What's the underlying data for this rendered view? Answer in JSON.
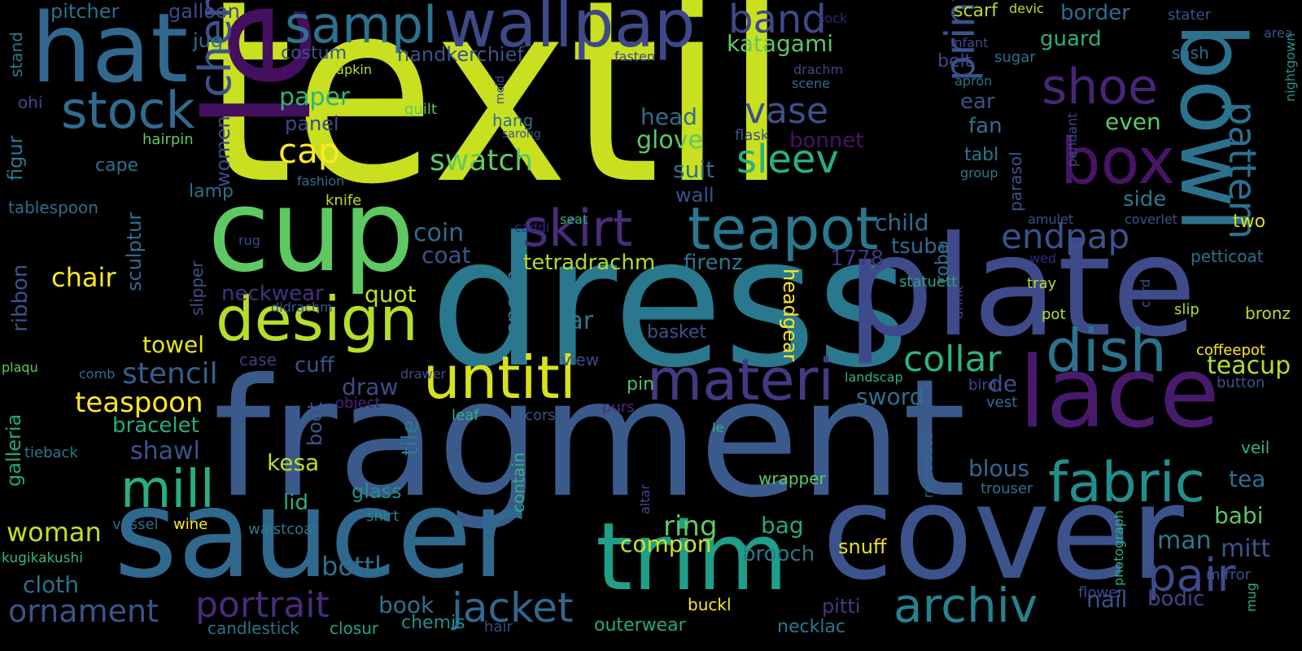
{
  "words": [
    {
      "text": "textil",
      "color": "#c8e020"
    },
    {
      "text": "dress",
      "color": "#2a788e"
    },
    {
      "text": "fragment",
      "color": "#3b5a8c"
    },
    {
      "text": "plate",
      "color": "#3f4a8a"
    },
    {
      "text": "length",
      "color": "#440f5e"
    },
    {
      "text": "cup",
      "color": "#5ec962"
    },
    {
      "text": "cover",
      "color": "#3b528b"
    },
    {
      "text": "saucer",
      "color": "#31688e"
    },
    {
      "text": "hat",
      "color": "#31688e"
    },
    {
      "text": "bowl",
      "color": "#2c728e"
    },
    {
      "text": "lace",
      "color": "#481a6c"
    },
    {
      "text": "wallpap",
      "color": "#3e4989"
    },
    {
      "text": "trim",
      "color": "#1f9e89"
    },
    {
      "text": "design",
      "color": "#b5de2b"
    },
    {
      "text": "sampl",
      "color": "#2c728e"
    },
    {
      "text": "stock",
      "color": "#2f6c8e"
    },
    {
      "text": "dish",
      "color": "#2c728e"
    },
    {
      "text": "box",
      "color": "#481467"
    },
    {
      "text": "shoe",
      "color": "#482576"
    },
    {
      "text": "teapot",
      "color": "#2a788e"
    },
    {
      "text": "materi",
      "color": "#443983"
    },
    {
      "text": "untitl",
      "color": "#d8e219"
    },
    {
      "text": "skirt",
      "color": "#472d7b"
    },
    {
      "text": "fabric",
      "color": "#21908d"
    },
    {
      "text": "archiv",
      "color": "#26828e"
    },
    {
      "text": "pair",
      "color": "#3e4a89"
    },
    {
      "text": "mill",
      "color": "#29af7f"
    },
    {
      "text": "cheney",
      "color": "#3b528b"
    },
    {
      "text": "jacket",
      "color": "#31688e"
    },
    {
      "text": "band",
      "color": "#3e4989"
    },
    {
      "text": "pattern",
      "color": "#2d708e"
    },
    {
      "text": "print",
      "color": "#3a538b"
    },
    {
      "text": "collar",
      "color": "#2eb37c"
    },
    {
      "text": "portrait",
      "color": "#472c7a"
    },
    {
      "text": "ornament",
      "color": "#3a548c"
    },
    {
      "text": "endpap",
      "color": "#3b528b"
    },
    {
      "text": "sleev",
      "color": "#2ab07f"
    },
    {
      "text": "vase",
      "color": "#3c4f8a"
    },
    {
      "text": "cap",
      "color": "#fde725"
    },
    {
      "text": "stencil",
      "color": "#355f8d"
    },
    {
      "text": "teaspoon",
      "color": "#fde725"
    },
    {
      "text": "swatch",
      "color": "#5ec962"
    },
    {
      "text": "tetradrachm",
      "color": "#addc30"
    },
    {
      "text": "firenz",
      "color": "#2a788e"
    },
    {
      "text": "chair",
      "color": "#fde725"
    },
    {
      "text": "woman",
      "color": "#c2df23"
    },
    {
      "text": "cloth",
      "color": "#2d708e"
    },
    {
      "text": "shawl",
      "color": "#3b528b"
    },
    {
      "text": "bracelet",
      "color": "#25ac82"
    },
    {
      "text": "kesa",
      "color": "#b8de29"
    },
    {
      "text": "mitt",
      "color": "#3a548c"
    },
    {
      "text": "man",
      "color": "#2a788e"
    },
    {
      "text": "babi",
      "color": "#5cc863"
    },
    {
      "text": "tea",
      "color": "#2e6f8e"
    },
    {
      "text": "teacup",
      "color": "#b5de2b"
    },
    {
      "text": "de",
      "color": "#3b528b"
    },
    {
      "text": "blous",
      "color": "#31688e"
    },
    {
      "text": "sword",
      "color": "#2e6e8e"
    },
    {
      "text": "ring",
      "color": "#5ec962"
    },
    {
      "text": "compon",
      "color": "#d0e11c"
    },
    {
      "text": "bag",
      "color": "#22a884"
    },
    {
      "text": "brooch",
      "color": "#2a788e"
    },
    {
      "text": "snuff",
      "color": "#e7e419"
    },
    {
      "text": "bottl",
      "color": "#2c728e"
    },
    {
      "text": "book",
      "color": "#2d718e"
    },
    {
      "text": "pitti",
      "color": "#443983"
    },
    {
      "text": "nail",
      "color": "#3b528b"
    },
    {
      "text": "bodic",
      "color": "#414487"
    },
    {
      "text": "flower",
      "color": "#3e4a89"
    },
    {
      "text": "buckl",
      "color": "#fde725"
    },
    {
      "text": "outerwear",
      "color": "#22a884"
    },
    {
      "text": "necklac",
      "color": "#2a788e"
    },
    {
      "text": "hair",
      "color": "#3e4989"
    },
    {
      "text": "chemis",
      "color": "#21918c"
    },
    {
      "text": "closur",
      "color": "#20a486"
    },
    {
      "text": "candlestick",
      "color": "#2c728e"
    },
    {
      "text": "kugikakushi",
      "color": "#35b779"
    },
    {
      "text": "vessel",
      "color": "#31688e"
    },
    {
      "text": "wine",
      "color": "#fde725"
    },
    {
      "text": "waistcoat",
      "color": "#2a788e"
    },
    {
      "text": "shirt",
      "color": "#26828e"
    },
    {
      "text": "glass",
      "color": "#21918c"
    },
    {
      "text": "lid",
      "color": "#29af7f"
    },
    {
      "text": "tile",
      "color": "#2a788e"
    },
    {
      "text": "boot",
      "color": "#3b528b"
    },
    {
      "text": "draw",
      "color": "#3e4989"
    },
    {
      "text": "cuff",
      "color": "#3b528b"
    },
    {
      "text": "case",
      "color": "#443a83"
    },
    {
      "text": "object",
      "color": "#482475"
    },
    {
      "text": "leaf",
      "color": "#2fb47c"
    },
    {
      "text": "corset",
      "color": "#3b528b"
    },
    {
      "text": "purs",
      "color": "#46307e"
    },
    {
      "text": "pin",
      "color": "#4ac16d"
    },
    {
      "text": "view",
      "color": "#3e4a89"
    },
    {
      "text": "basket",
      "color": "#3b528b"
    },
    {
      "text": "jar",
      "color": "#2a788e"
    },
    {
      "text": "spoon",
      "color": "#2a788e"
    },
    {
      "text": "quot",
      "color": "#c2df23"
    },
    {
      "text": "neckwear",
      "color": "#46307e"
    },
    {
      "text": "coin",
      "color": "#2f6c8e"
    },
    {
      "text": "coat",
      "color": "#3b528b"
    },
    {
      "text": "towel",
      "color": "#e7e419"
    },
    {
      "text": "galleria",
      "color": "#22a884"
    },
    {
      "text": "ribbon",
      "color": "#3b528b"
    },
    {
      "text": "plaqu",
      "color": "#5ec962"
    },
    {
      "text": "comb",
      "color": "#2e6e8e"
    },
    {
      "text": "tieback",
      "color": "#2a788e"
    },
    {
      "text": "drawer",
      "color": "#3b528b"
    },
    {
      "text": "contain",
      "color": "#2fb47c"
    },
    {
      "text": "wrapper",
      "color": "#5ec962"
    },
    {
      "text": "le",
      "color": "#2fb47c"
    },
    {
      "text": "altar",
      "color": "#3e4989"
    },
    {
      "text": "reproduct",
      "color": "#31688e"
    },
    {
      "text": "trouser",
      "color": "#2c728e"
    },
    {
      "text": "photograph",
      "color": "#2ab07f"
    },
    {
      "text": "mug",
      "color": "#2ab07f"
    },
    {
      "text": "mirror",
      "color": "#3b528b"
    },
    {
      "text": "veil",
      "color": "#2fb47c"
    },
    {
      "text": "vest",
      "color": "#2d718e"
    },
    {
      "text": "button",
      "color": "#3b528b"
    },
    {
      "text": "bird",
      "color": "#3e4989"
    },
    {
      "text": "landscap",
      "color": "#2fb47c"
    },
    {
      "text": "drink",
      "color": "#3e4989"
    },
    {
      "text": "coffeepot",
      "color": "#fde725"
    },
    {
      "text": "bronz",
      "color": "#b5de2b"
    },
    {
      "text": "slip",
      "color": "#b5de2b"
    },
    {
      "text": "card",
      "color": "#3b528b"
    },
    {
      "text": "pot",
      "color": "#b5de2b"
    },
    {
      "text": "tray",
      "color": "#b5de2b"
    },
    {
      "text": "petticoat",
      "color": "#2d708e"
    },
    {
      "text": "wed",
      "color": "#2e2a7a"
    },
    {
      "text": "statuett",
      "color": "#22a884"
    },
    {
      "text": "1778",
      "color": "#3e3585"
    },
    {
      "text": "headgear",
      "color": "#fde725"
    },
    {
      "text": "robe",
      "color": "#2e6e8e"
    },
    {
      "text": "child",
      "color": "#2e6e8e"
    },
    {
      "text": "tsuba",
      "color": "#31688e"
    },
    {
      "text": "side",
      "color": "#2a788e"
    },
    {
      "text": "two",
      "color": "#dde318"
    },
    {
      "text": "coverlet",
      "color": "#3b528b"
    },
    {
      "text": "amulet",
      "color": "#3b528b"
    },
    {
      "text": "tabl",
      "color": "#2a788e"
    },
    {
      "text": "group",
      "color": "#2a788e"
    },
    {
      "text": "parasol",
      "color": "#3b528b"
    },
    {
      "text": "pendant",
      "color": "#3e4989"
    },
    {
      "text": "nightgown",
      "color": "#21918c"
    },
    {
      "text": "fan",
      "color": "#2d708e"
    },
    {
      "text": "ear",
      "color": "#3b528b"
    },
    {
      "text": "even",
      "color": "#5ec962"
    },
    {
      "text": "bonnet",
      "color": "#471365"
    },
    {
      "text": "flask",
      "color": "#3b528b"
    },
    {
      "text": "glove",
      "color": "#5ec962"
    },
    {
      "text": "head",
      "color": "#2e6e8e"
    },
    {
      "text": "suit",
      "color": "#2e6e8e"
    },
    {
      "text": "wall",
      "color": "#3b528b"
    },
    {
      "text": "caddi",
      "color": "#2e2a7a"
    },
    {
      "text": "rug",
      "color": "#3e4989"
    },
    {
      "text": "seat",
      "color": "#2fb47c"
    },
    {
      "text": "slipper",
      "color": "#3b528b"
    },
    {
      "text": "sculptur",
      "color": "#2e6e8e"
    },
    {
      "text": "didrachm",
      "color": "#3b528b"
    },
    {
      "text": "women",
      "color": "#3e4989"
    },
    {
      "text": "lamp",
      "color": "#2d708e"
    },
    {
      "text": "tablespoon",
      "color": "#2e6e8e"
    },
    {
      "text": "cape",
      "color": "#2d708e"
    },
    {
      "text": "figur",
      "color": "#2a788e"
    },
    {
      "text": "hairpin",
      "color": "#5ec962"
    },
    {
      "text": "ohi",
      "color": "#3e4989"
    },
    {
      "text": "stand",
      "color": "#2a788e"
    },
    {
      "text": "pitcher",
      "color": "#2e6e8e"
    },
    {
      "text": "galloon",
      "color": "#3e4989"
    },
    {
      "text": "jug",
      "color": "#2e6e8e"
    },
    {
      "text": "costum",
      "color": "#3b528b"
    },
    {
      "text": "handkerchief",
      "color": "#3b528b"
    },
    {
      "text": "paper",
      "color": "#2fb47c"
    },
    {
      "text": "panel",
      "color": "#3e4989"
    },
    {
      "text": "katagami",
      "color": "#5ec962"
    },
    {
      "text": "belt",
      "color": "#3e4989"
    },
    {
      "text": "guard",
      "color": "#2ab07f"
    },
    {
      "text": "border",
      "color": "#2e6e8e"
    },
    {
      "text": "scarf",
      "color": "#b5de2b"
    },
    {
      "text": "devic",
      "color": "#b5de2b"
    },
    {
      "text": "sock",
      "color": "#2e2a7a"
    },
    {
      "text": "stater",
      "color": "#3b528b"
    },
    {
      "text": "area",
      "color": "#3b528b"
    },
    {
      "text": "sash",
      "color": "#2e6e8e"
    },
    {
      "text": "infant",
      "color": "#3e4989"
    },
    {
      "text": "sugar",
      "color": "#2e6e8e"
    },
    {
      "text": "apron",
      "color": "#2e6e8e"
    },
    {
      "text": "drachm",
      "color": "#3e4989"
    },
    {
      "text": "scene",
      "color": "#2e6e8e"
    },
    {
      "text": "fasten",
      "color": "#3e4989"
    },
    {
      "text": "napkin",
      "color": "#b5de2b"
    },
    {
      "text": "mold",
      "color": "#3e4989"
    },
    {
      "text": "quilt",
      "color": "#5ec962"
    },
    {
      "text": "hang",
      "color": "#2e6e8e"
    },
    {
      "text": "sarong",
      "color": "#3b528b"
    },
    {
      "text": "fashion",
      "color": "#2e6e8e"
    },
    {
      "text": "knife",
      "color": "#b5de2b"
    }
  ]
}
